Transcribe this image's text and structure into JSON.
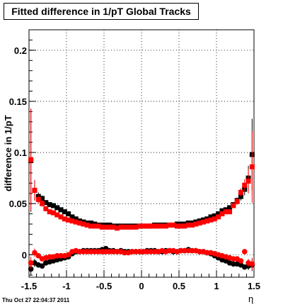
{
  "title": "Fitted difference in 1/pT  Global Tracks",
  "timestamp": "Thu Oct 27 22:04:37 2011",
  "chart_data": {
    "type": "scatter",
    "title": "Fitted difference in 1/pT  Global Tracks",
    "xlabel": "η",
    "ylabel": "difference in 1/pT",
    "xlim": [
      -1.5,
      1.5
    ],
    "ylim": [
      -0.022,
      0.22
    ],
    "x_ticks": [
      -1.5,
      -1,
      -0.5,
      0,
      0.5,
      1,
      1.5
    ],
    "x_tick_labels": [
      "-1.5",
      "-1",
      "-0.5",
      "0",
      "0.5",
      "1",
      "1.5"
    ],
    "y_ticks": [
      0,
      0.05,
      0.1,
      0.15,
      0.2
    ],
    "y_tick_labels": [
      "0",
      "0.05",
      "0.1",
      "0.15",
      "0.2"
    ],
    "grid": true,
    "legend": "none",
    "series": [
      {
        "color": "#000000",
        "x": [
          -1.475,
          -1.425,
          -1.375,
          -1.325,
          -1.275,
          -1.225,
          -1.175,
          -1.125,
          -1.075,
          -1.025,
          -0.975,
          -0.925,
          -0.875,
          -0.825,
          -0.775,
          -0.725,
          -0.675,
          -0.625,
          -0.575,
          -0.525,
          -0.475,
          -0.425,
          -0.375,
          -0.325,
          -0.275,
          -0.225,
          -0.175,
          -0.125,
          -0.075,
          -0.025,
          0.025,
          0.075,
          0.125,
          0.175,
          0.225,
          0.275,
          0.325,
          0.375,
          0.425,
          0.475,
          0.525,
          0.575,
          0.625,
          0.675,
          0.725,
          0.775,
          0.825,
          0.875,
          0.925,
          0.975,
          1.025,
          1.075,
          1.125,
          1.175,
          1.225,
          1.275,
          1.325,
          1.375,
          1.425,
          1.475
        ],
        "y": [
          0.092,
          0.063,
          0.057,
          0.055,
          0.051,
          0.049,
          0.048,
          0.046,
          0.044,
          0.042,
          0.04,
          0.037,
          0.035,
          0.033,
          0.032,
          0.031,
          0.031,
          0.03,
          0.029,
          0.029,
          0.029,
          0.029,
          0.028,
          0.028,
          0.028,
          0.028,
          0.028,
          0.028,
          0.028,
          0.028,
          0.028,
          0.028,
          0.028,
          0.029,
          0.029,
          0.029,
          0.029,
          0.029,
          0.029,
          0.03,
          0.03,
          0.03,
          0.031,
          0.031,
          0.032,
          0.033,
          0.034,
          0.035,
          0.037,
          0.038,
          0.04,
          0.043,
          0.044,
          0.046,
          0.049,
          0.053,
          0.057,
          0.064,
          0.075,
          0.098
        ],
        "err": [
          0.05,
          0.01,
          0.004,
          0.003,
          0.002,
          0.002,
          0.002,
          0.002,
          0.002,
          0.002,
          0.001,
          0.001,
          0.001,
          0.001,
          0.001,
          0.001,
          0.001,
          0.001,
          0.001,
          0.001,
          0.001,
          0.001,
          0.001,
          0.001,
          0.001,
          0.001,
          0.001,
          0.001,
          0.001,
          0.001,
          0.001,
          0.001,
          0.001,
          0.001,
          0.001,
          0.001,
          0.001,
          0.001,
          0.001,
          0.001,
          0.001,
          0.001,
          0.001,
          0.001,
          0.001,
          0.001,
          0.001,
          0.001,
          0.001,
          0.001,
          0.001,
          0.002,
          0.002,
          0.002,
          0.002,
          0.003,
          0.004,
          0.006,
          0.012,
          0.035
        ]
      },
      {
        "color": "#ff0000",
        "x": [
          -1.475,
          -1.425,
          -1.375,
          -1.325,
          -1.275,
          -1.225,
          -1.175,
          -1.125,
          -1.075,
          -1.025,
          -0.975,
          -0.925,
          -0.875,
          -0.825,
          -0.775,
          -0.725,
          -0.675,
          -0.625,
          -0.575,
          -0.525,
          -0.475,
          -0.425,
          -0.375,
          -0.325,
          -0.275,
          -0.225,
          -0.175,
          -0.125,
          -0.075,
          -0.025,
          0.025,
          0.075,
          0.125,
          0.175,
          0.225,
          0.275,
          0.325,
          0.375,
          0.425,
          0.475,
          0.525,
          0.575,
          0.625,
          0.675,
          0.725,
          0.775,
          0.825,
          0.875,
          0.925,
          0.975,
          1.025,
          1.075,
          1.125,
          1.175,
          1.225,
          1.275,
          1.325,
          1.375,
          1.425,
          1.475
        ],
        "y": [
          0.093,
          0.063,
          0.054,
          0.05,
          0.045,
          0.042,
          0.041,
          0.039,
          0.037,
          0.035,
          0.034,
          0.033,
          0.032,
          0.031,
          0.03,
          0.029,
          0.028,
          0.028,
          0.028,
          0.027,
          0.027,
          0.027,
          0.027,
          0.026,
          0.027,
          0.027,
          0.027,
          0.027,
          0.027,
          0.028,
          0.028,
          0.028,
          0.028,
          0.028,
          0.028,
          0.028,
          0.028,
          0.029,
          0.029,
          0.028,
          0.028,
          0.028,
          0.029,
          0.029,
          0.03,
          0.031,
          0.032,
          0.033,
          0.034,
          0.035,
          0.037,
          0.04,
          0.042,
          0.042,
          0.048,
          0.052,
          0.061,
          0.068,
          0.072,
          0.086
        ],
        "err": [
          0.05,
          0.01,
          0.004,
          0.003,
          0.002,
          0.002,
          0.002,
          0.002,
          0.002,
          0.002,
          0.001,
          0.001,
          0.001,
          0.001,
          0.001,
          0.001,
          0.001,
          0.001,
          0.001,
          0.001,
          0.001,
          0.001,
          0.001,
          0.001,
          0.001,
          0.001,
          0.001,
          0.001,
          0.001,
          0.001,
          0.001,
          0.001,
          0.001,
          0.001,
          0.001,
          0.001,
          0.001,
          0.001,
          0.001,
          0.001,
          0.001,
          0.001,
          0.001,
          0.001,
          0.001,
          0.001,
          0.001,
          0.001,
          0.001,
          0.001,
          0.001,
          0.002,
          0.002,
          0.002,
          0.002,
          0.003,
          0.004,
          0.006,
          0.012,
          0.035
        ]
      },
      {
        "color": "#000000",
        "x": [
          -1.475,
          -1.425,
          -1.375,
          -1.325,
          -1.275,
          -1.225,
          -1.175,
          -1.125,
          -1.075,
          -1.025,
          -0.975,
          -0.925,
          -0.875,
          -0.825,
          -0.775,
          -0.725,
          -0.675,
          -0.625,
          -0.575,
          -0.525,
          -0.475,
          -0.425,
          -0.375,
          -0.325,
          -0.275,
          -0.225,
          -0.175,
          -0.125,
          -0.075,
          -0.025,
          0.025,
          0.075,
          0.125,
          0.175,
          0.225,
          0.275,
          0.325,
          0.375,
          0.425,
          0.475,
          0.525,
          0.575,
          0.625,
          0.675,
          0.725,
          0.775,
          0.825,
          0.875,
          0.925,
          0.975,
          1.025,
          1.075,
          1.125,
          1.175,
          1.225,
          1.275,
          1.325,
          1.375,
          1.425,
          1.475
        ],
        "y": [
          -0.014,
          -0.008,
          -0.01,
          -0.011,
          -0.008,
          -0.007,
          -0.006,
          -0.005,
          -0.004,
          -0.003,
          -0.002,
          0.001,
          0.003,
          0.003,
          0.004,
          0.004,
          0.004,
          0.004,
          0.004,
          0.005,
          0.006,
          0.004,
          0.004,
          0.003,
          0.004,
          0.003,
          0.003,
          0.003,
          0.003,
          0.003,
          0.003,
          0.004,
          0.004,
          0.004,
          0.003,
          0.003,
          0.004,
          0.004,
          0.003,
          0.003,
          0.004,
          0.004,
          0.005,
          0.004,
          0.004,
          0.003,
          0.003,
          0.002,
          0.001,
          -0.001,
          -0.003,
          -0.005,
          -0.006,
          -0.008,
          -0.009,
          -0.009,
          -0.01,
          -0.012,
          -0.011,
          -0.01
        ],
        "err": [
          0.006,
          0.004,
          0.002,
          0.002,
          0.001,
          0.001,
          0.001,
          0.001,
          0.001,
          0.001,
          0.001,
          0.001,
          0.001,
          0.001,
          0.001,
          0.001,
          0.001,
          0.001,
          0.001,
          0.001,
          0.001,
          0.001,
          0.001,
          0.001,
          0.001,
          0.001,
          0.001,
          0.001,
          0.001,
          0.001,
          0.001,
          0.001,
          0.001,
          0.001,
          0.001,
          0.001,
          0.001,
          0.001,
          0.001,
          0.001,
          0.001,
          0.001,
          0.001,
          0.001,
          0.001,
          0.001,
          0.001,
          0.001,
          0.001,
          0.001,
          0.001,
          0.001,
          0.001,
          0.001,
          0.001,
          0.001,
          0.002,
          0.002,
          0.004,
          0.006
        ]
      },
      {
        "color": "#ff0000",
        "x": [
          -1.475,
          -1.425,
          -1.375,
          -1.325,
          -1.275,
          -1.225,
          -1.175,
          -1.125,
          -1.075,
          -1.025,
          -0.975,
          -0.925,
          -0.875,
          -0.825,
          -0.775,
          -0.725,
          -0.675,
          -0.625,
          -0.575,
          -0.525,
          -0.475,
          -0.425,
          -0.375,
          -0.325,
          -0.275,
          -0.225,
          -0.175,
          -0.125,
          -0.075,
          -0.025,
          0.025,
          0.075,
          0.125,
          0.175,
          0.225,
          0.275,
          0.325,
          0.375,
          0.425,
          0.475,
          0.525,
          0.575,
          0.625,
          0.675,
          0.725,
          0.775,
          0.825,
          0.875,
          0.925,
          0.975,
          1.025,
          1.075,
          1.125,
          1.175,
          1.225,
          1.275,
          1.325,
          1.375,
          1.425,
          1.475
        ],
        "y": [
          -0.008,
          0.002,
          -0.001,
          -0.004,
          -0.003,
          -0.002,
          -0.002,
          -0.001,
          -0.001,
          -0.001,
          0.0,
          0.003,
          0.004,
          0.003,
          0.003,
          0.003,
          0.003,
          0.003,
          0.003,
          0.003,
          0.003,
          0.003,
          0.003,
          0.003,
          0.003,
          0.002,
          0.002,
          0.003,
          0.003,
          0.003,
          0.003,
          0.003,
          0.003,
          0.003,
          0.003,
          0.004,
          0.003,
          0.004,
          0.004,
          0.003,
          0.004,
          0.004,
          0.004,
          0.004,
          0.004,
          0.003,
          0.003,
          0.002,
          0.002,
          0.001,
          0.0,
          -0.001,
          -0.002,
          -0.003,
          -0.004,
          -0.004,
          -0.006,
          0.003,
          -0.008,
          -0.009
        ],
        "err": [
          0.006,
          0.004,
          0.002,
          0.002,
          0.001,
          0.001,
          0.001,
          0.001,
          0.001,
          0.001,
          0.001,
          0.001,
          0.001,
          0.001,
          0.001,
          0.001,
          0.001,
          0.001,
          0.001,
          0.001,
          0.001,
          0.001,
          0.001,
          0.001,
          0.001,
          0.001,
          0.001,
          0.001,
          0.001,
          0.001,
          0.001,
          0.001,
          0.001,
          0.001,
          0.001,
          0.001,
          0.001,
          0.001,
          0.001,
          0.001,
          0.001,
          0.001,
          0.001,
          0.001,
          0.001,
          0.001,
          0.001,
          0.001,
          0.001,
          0.001,
          0.001,
          0.001,
          0.001,
          0.001,
          0.001,
          0.001,
          0.002,
          0.002,
          0.004,
          0.006
        ]
      }
    ]
  }
}
